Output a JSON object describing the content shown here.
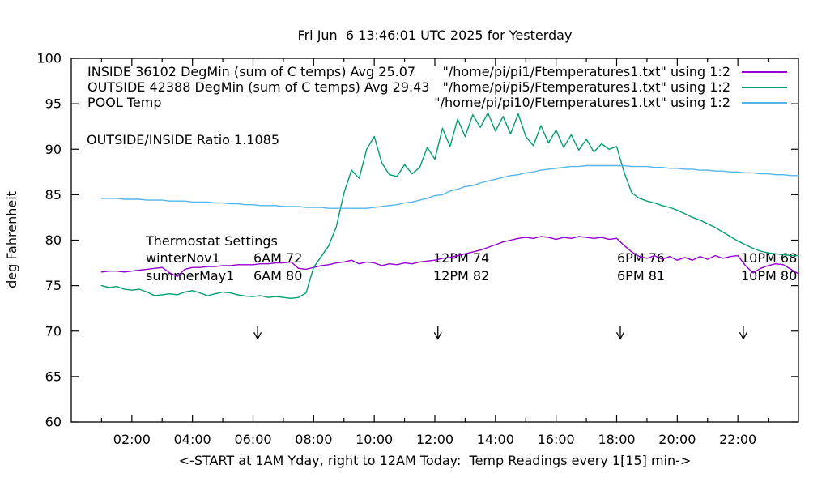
{
  "chart_data": {
    "type": "line",
    "title": "Fri Jun  6 13:46:01 UTC 2025 for Yesterday",
    "xlabel": "<-START at 1AM Yday, right to 12AM Today:  Temp Readings every 1[15] min->",
    "ylabel": "deg Fahrenheit",
    "xlim": [
      0,
      24
    ],
    "ylim": [
      60,
      100
    ],
    "grid": false,
    "xticks": [
      2,
      4,
      6,
      8,
      10,
      12,
      14,
      16,
      18,
      20,
      22
    ],
    "xtick_labels": [
      "02:00",
      "04:00",
      "06:00",
      "08:00",
      "10:00",
      "12:00",
      "14:00",
      "16:00",
      "18:00",
      "20:00",
      "22:00"
    ],
    "x_minor_ticks": [
      1,
      3,
      5,
      7,
      9,
      11,
      13,
      15,
      17,
      19,
      21,
      23
    ],
    "yticks": [
      60,
      65,
      70,
      75,
      80,
      85,
      90,
      95,
      100
    ],
    "ytick_labels": [
      "60",
      "65",
      "70",
      "75",
      "80",
      "85",
      "90",
      "95",
      "100"
    ],
    "legend_position": "top",
    "legend": [
      {
        "name": "INSIDE",
        "label_left": "INSIDE 36102 DegMin (sum of C temps) Avg 25.07",
        "label_right": "\"/home/pi/pi1/Ftemperatures1.txt\" using 1:2",
        "color": "#9400D3"
      },
      {
        "name": "OUTSIDE",
        "label_left": "OUTSIDE 42388 DegMin (sum of C temps) Avg 29.43",
        "label_right": "\"/home/pi/pi5/Ftemperatures1.txt\" using 1:2",
        "color": "#009E73"
      },
      {
        "name": "POOL",
        "label_left": "POOL Temp",
        "label_right": "\"/home/pi/pi10/Ftemperatures1.txt\" using 1:2",
        "color": "#56B4E9"
      }
    ],
    "x0": 1,
    "dx": 0.25,
    "series": [
      {
        "name": "INSIDE",
        "color": "#9400D3",
        "values": [
          76.5,
          76.6,
          76.6,
          76.5,
          76.6,
          76.7,
          76.8,
          76.9,
          77.0,
          76.4,
          76.0,
          76.8,
          77.0,
          77.0,
          77.1,
          77.1,
          77.2,
          77.2,
          77.3,
          77.3,
          77.3,
          77.4,
          77.4,
          77.5,
          77.5,
          77.6,
          76.9,
          76.8,
          77.0,
          77.2,
          77.3,
          77.5,
          77.6,
          77.8,
          77.4,
          77.6,
          77.5,
          77.2,
          77.4,
          77.3,
          77.5,
          77.4,
          77.6,
          77.7,
          77.8,
          78.0,
          78.1,
          78.3,
          78.5,
          78.7,
          78.9,
          79.2,
          79.5,
          79.8,
          80.0,
          80.2,
          80.3,
          80.2,
          80.4,
          80.3,
          80.1,
          80.3,
          80.2,
          80.4,
          80.3,
          80.2,
          80.3,
          80.1,
          80.2,
          79.4,
          78.7,
          78.2,
          78.0,
          78.3,
          77.9,
          78.2,
          77.8,
          78.1,
          77.8,
          78.2,
          77.9,
          78.3,
          78.0,
          78.2,
          78.3,
          77.2,
          76.4,
          76.9,
          77.2,
          77.4,
          77.3,
          76.8,
          76.3
        ]
      },
      {
        "name": "OUTSIDE",
        "color": "#009E73",
        "values": [
          75.0,
          74.8,
          74.9,
          74.6,
          74.5,
          74.6,
          74.3,
          73.9,
          74.0,
          74.1,
          74.0,
          74.3,
          74.45,
          74.2,
          73.9,
          74.1,
          74.3,
          74.2,
          74.0,
          73.85,
          73.8,
          73.9,
          73.7,
          73.8,
          73.7,
          73.6,
          73.7,
          74.2,
          77.0,
          78.2,
          79.4,
          81.5,
          85.2,
          87.7,
          86.8,
          90.0,
          91.4,
          88.5,
          87.2,
          87.0,
          88.3,
          87.3,
          88.0,
          90.2,
          88.9,
          92.3,
          90.3,
          93.3,
          91.4,
          93.8,
          92.4,
          94.0,
          92.0,
          93.6,
          91.7,
          93.9,
          91.4,
          90.4,
          92.6,
          90.7,
          92.1,
          90.2,
          91.6,
          89.9,
          91.1,
          89.7,
          90.6,
          90.0,
          90.3,
          87.4,
          85.2,
          84.6,
          84.3,
          84.1,
          83.8,
          83.6,
          83.3,
          82.9,
          82.5,
          82.2,
          81.8,
          81.4,
          80.9,
          80.4,
          79.9,
          79.5,
          79.1,
          78.8,
          78.6,
          78.5,
          78.4,
          78.3,
          78.3
        ]
      },
      {
        "name": "POOL",
        "color": "#56B4E9",
        "values": [
          84.6,
          84.6,
          84.6,
          84.5,
          84.5,
          84.5,
          84.4,
          84.4,
          84.4,
          84.3,
          84.3,
          84.3,
          84.2,
          84.2,
          84.2,
          84.1,
          84.1,
          84.0,
          84.0,
          83.9,
          83.9,
          83.8,
          83.8,
          83.8,
          83.7,
          83.7,
          83.7,
          83.6,
          83.6,
          83.6,
          83.5,
          83.5,
          83.5,
          83.5,
          83.5,
          83.5,
          83.6,
          83.7,
          83.8,
          83.9,
          84.1,
          84.2,
          84.4,
          84.6,
          84.9,
          85.0,
          85.4,
          85.6,
          85.9,
          86.0,
          86.3,
          86.5,
          86.7,
          86.9,
          87.1,
          87.2,
          87.4,
          87.5,
          87.7,
          87.8,
          87.9,
          88.0,
          88.1,
          88.1,
          88.2,
          88.2,
          88.2,
          88.2,
          88.2,
          88.2,
          88.1,
          88.1,
          88.1,
          88.0,
          88.0,
          87.9,
          87.9,
          87.8,
          87.8,
          87.7,
          87.7,
          87.6,
          87.6,
          87.5,
          87.5,
          87.4,
          87.4,
          87.3,
          87.3,
          87.2,
          87.2,
          87.1,
          87.1
        ]
      }
    ],
    "annotations": {
      "ratio": "OUTSIDE/INSIDE Ratio 1.1085",
      "thermostat_header": "Thermostat Settings",
      "thermostat_rows": [
        [
          "winterNov1",
          "6AM 72",
          "12PM 74",
          "6PM 76",
          "10PM 68"
        ],
        [
          "summerMay1",
          "6AM 80",
          "12PM 82",
          "6PM 81",
          "10PM 80"
        ]
      ]
    },
    "arrows": {
      "hours": [
        6.15,
        12.1,
        18.12,
        22.18
      ],
      "y_from": 70.55,
      "y_to": 69.15
    }
  }
}
